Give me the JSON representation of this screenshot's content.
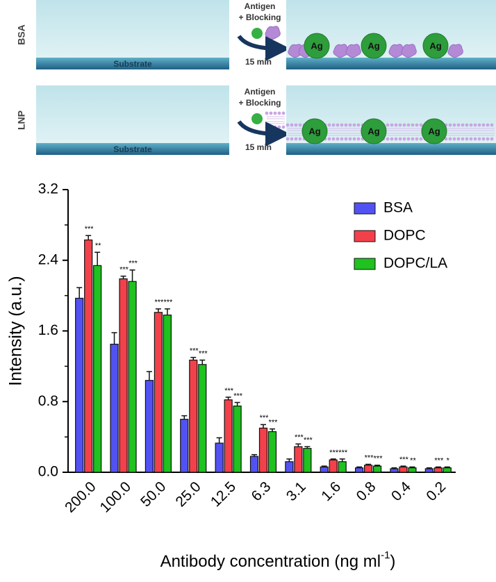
{
  "diagram": {
    "rows": [
      {
        "label": "BSA",
        "substrate": "Substrate",
        "step": [
          "Antigen",
          "+ Blocking"
        ],
        "time": "15 min",
        "antigens": [
          "Ag",
          "Ag",
          "Ag"
        ]
      },
      {
        "label": "LNP",
        "substrate": "Substrate",
        "step": [
          "Antigen",
          "+ Blocking"
        ],
        "time": "15 min",
        "antigens": [
          "Ag",
          "Ag",
          "Ag"
        ]
      }
    ]
  },
  "chart_data": {
    "type": "bar",
    "y_label": "Intensity  (a.u.)",
    "x_label": {
      "text": "Antibody concentration (ng ml",
      "superscript": "-1",
      "suffix": ")"
    },
    "categories": [
      "200.0",
      "100.0",
      "50.0",
      "25.0",
      "12.5",
      "6.3",
      "3.1",
      "1.6",
      "0.8",
      "0.4",
      "0.2"
    ],
    "series": [
      {
        "name": "BSA",
        "color": "#5252f2",
        "values": [
          1.97,
          1.45,
          1.04,
          0.6,
          0.33,
          0.18,
          0.12,
          0.06,
          0.05,
          0.04,
          0.04
        ],
        "errors": [
          0.12,
          0.13,
          0.1,
          0.04,
          0.06,
          0.02,
          0.03,
          0.01,
          0.01,
          0.01,
          0.01
        ]
      },
      {
        "name": "DOPC",
        "color": "#f2414a",
        "values": [
          2.63,
          2.19,
          1.81,
          1.27,
          0.82,
          0.5,
          0.29,
          0.14,
          0.08,
          0.06,
          0.05
        ],
        "errors": [
          0.05,
          0.03,
          0.04,
          0.03,
          0.03,
          0.04,
          0.03,
          0.01,
          0.01,
          0.01,
          0.01
        ],
        "significance": [
          "***",
          "***",
          "***",
          "***",
          "***",
          "***",
          "***",
          "***",
          "***",
          "***",
          "***"
        ]
      },
      {
        "name": "DOPC/LA",
        "color": "#1fc21f",
        "values": [
          2.34,
          2.16,
          1.78,
          1.22,
          0.75,
          0.46,
          0.27,
          0.12,
          0.07,
          0.05,
          0.05
        ],
        "errors": [
          0.15,
          0.13,
          0.07,
          0.05,
          0.04,
          0.03,
          0.02,
          0.03,
          0.01,
          0.01,
          0.01
        ],
        "significance": [
          "**",
          "***",
          "***",
          "***",
          "***",
          "***",
          "***",
          "***",
          "***",
          "**",
          "*"
        ]
      }
    ],
    "ylim": [
      0,
      3.2
    ],
    "yticks": [
      {
        "value": 0,
        "label": "0.0"
      },
      0.8,
      1.6,
      2.4,
      3.2
    ],
    "yminorticks": [
      0.4,
      1.2,
      2.0,
      2.8
    ],
    "legend": "top-right"
  }
}
